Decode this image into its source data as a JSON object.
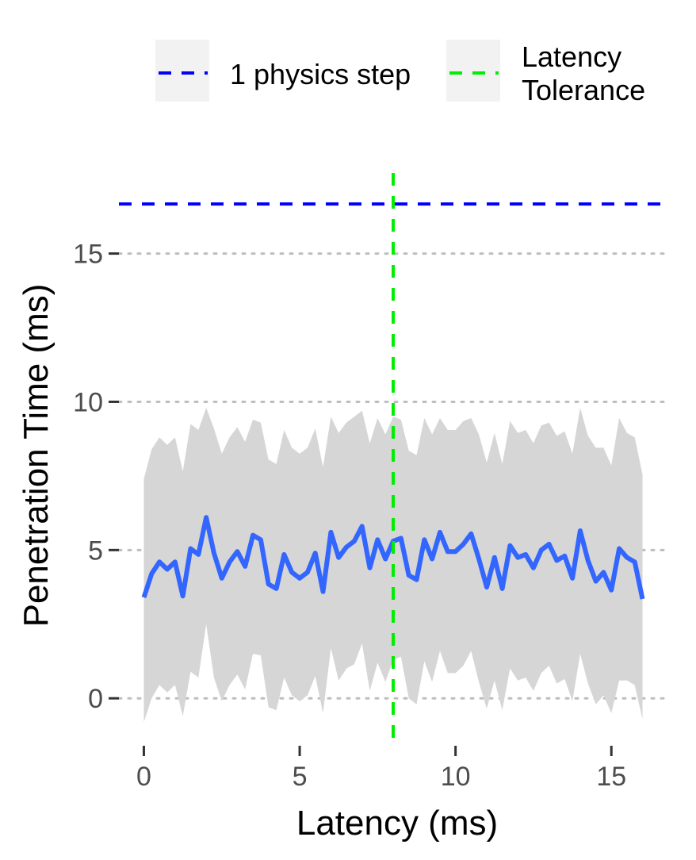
{
  "chart_data": {
    "type": "line",
    "title": "",
    "xlabel": "Latency (ms)",
    "ylabel": "Penetration Time (ms)",
    "xlim": [
      -0.8,
      16.8
    ],
    "ylim": [
      -1.6,
      18.2
    ],
    "x_ticks": [
      0,
      5,
      10,
      15
    ],
    "y_ticks": [
      0,
      5,
      10,
      15
    ],
    "grid": "horizontal dotted at y ticks",
    "legend_position": "top",
    "colors": {
      "line": "#3366ff",
      "band": "#d6d6d6",
      "physics_step": "#0000ff",
      "latency_tolerance": "#00ee00",
      "grid": "#bebebe",
      "legend_key_bg": "#f2f2f2"
    },
    "reference_lines": [
      {
        "name": "1 physics step",
        "orientation": "horizontal",
        "value": 16.67,
        "color": "#0000ff"
      },
      {
        "name": "Latency Tolerance",
        "orientation": "vertical",
        "value": 8.0,
        "color": "#00ee00"
      }
    ],
    "legend": [
      {
        "label_lines": [
          "1 physics step"
        ],
        "color": "#0000ff"
      },
      {
        "label_lines": [
          "Latency",
          "Tolerance"
        ],
        "color": "#00ee00"
      }
    ],
    "series": [
      {
        "x": [
          0,
          0.25,
          0.5,
          0.75,
          1,
          1.25,
          1.5,
          1.75,
          2,
          2.25,
          2.5,
          2.75,
          3,
          3.25,
          3.5,
          3.75,
          4,
          4.25,
          4.5,
          4.75,
          5,
          5.25,
          5.5,
          5.75,
          6,
          6.25,
          6.5,
          6.75,
          7,
          7.25,
          7.5,
          7.75,
          8,
          8.25,
          8.5,
          8.75,
          9,
          9.25,
          9.5,
          9.75,
          10,
          10.25,
          10.5,
          10.75,
          11,
          11.25,
          11.5,
          11.75,
          12,
          12.25,
          12.5,
          12.75,
          13,
          13.25,
          13.5,
          13.75,
          14,
          14.25,
          14.5,
          14.75,
          15,
          15.25,
          15.5,
          15.75,
          16
        ],
        "mean": [
          3.4,
          4.2,
          4.6,
          4.35,
          4.6,
          3.45,
          5.05,
          4.85,
          6.1,
          4.9,
          4.05,
          4.6,
          4.95,
          4.45,
          5.5,
          5.35,
          3.85,
          3.7,
          4.85,
          4.25,
          4.05,
          4.25,
          4.9,
          3.6,
          5.6,
          4.75,
          5.1,
          5.3,
          5.8,
          4.4,
          5.35,
          4.7,
          5.3,
          5.4,
          4.15,
          4.0,
          5.35,
          4.7,
          5.6,
          4.95,
          4.95,
          5.2,
          5.55,
          4.7,
          3.75,
          4.75,
          3.7,
          5.15,
          4.75,
          4.85,
          4.4,
          5.0,
          5.2,
          4.65,
          4.8,
          4.05,
          5.65,
          4.65,
          3.95,
          4.25,
          3.65,
          5.05,
          4.75,
          4.6,
          3.35
        ],
        "upper": [
          7.4,
          8.4,
          8.8,
          8.55,
          8.8,
          7.65,
          9.25,
          9.05,
          9.8,
          9.1,
          8.25,
          8.8,
          9.15,
          8.65,
          9.4,
          9.3,
          8.05,
          7.9,
          9.05,
          8.45,
          8.25,
          8.45,
          9.1,
          7.8,
          9.5,
          8.95,
          9.3,
          9.5,
          9.7,
          8.6,
          9.45,
          8.9,
          9.5,
          9.4,
          8.35,
          8.2,
          9.45,
          8.9,
          9.45,
          9.05,
          9.05,
          9.35,
          9.45,
          8.9,
          7.95,
          8.95,
          7.9,
          9.35,
          8.95,
          9.05,
          8.6,
          9.2,
          9.3,
          8.85,
          9.0,
          8.25,
          9.8,
          8.85,
          8.45,
          8.45,
          7.85,
          9.45,
          8.95,
          8.8,
          7.55
        ],
        "lower": [
          -0.8,
          0.0,
          0.45,
          0.2,
          0.45,
          -0.6,
          0.9,
          0.7,
          2.5,
          0.7,
          -0.1,
          0.45,
          0.8,
          0.3,
          1.5,
          1.45,
          -0.3,
          -0.4,
          0.7,
          0.1,
          -0.1,
          0.1,
          0.75,
          -0.5,
          1.7,
          0.6,
          1.0,
          1.15,
          1.85,
          0.25,
          1.2,
          0.55,
          1.3,
          1.4,
          0.0,
          -0.2,
          1.25,
          0.55,
          1.6,
          0.85,
          0.85,
          1.1,
          1.6,
          0.55,
          -0.35,
          0.6,
          -0.4,
          1.0,
          0.6,
          0.7,
          0.25,
          0.85,
          1.1,
          0.5,
          0.65,
          -0.1,
          1.5,
          0.5,
          -0.2,
          0.1,
          -0.5,
          0.6,
          0.6,
          0.45,
          -0.7
        ]
      }
    ]
  }
}
